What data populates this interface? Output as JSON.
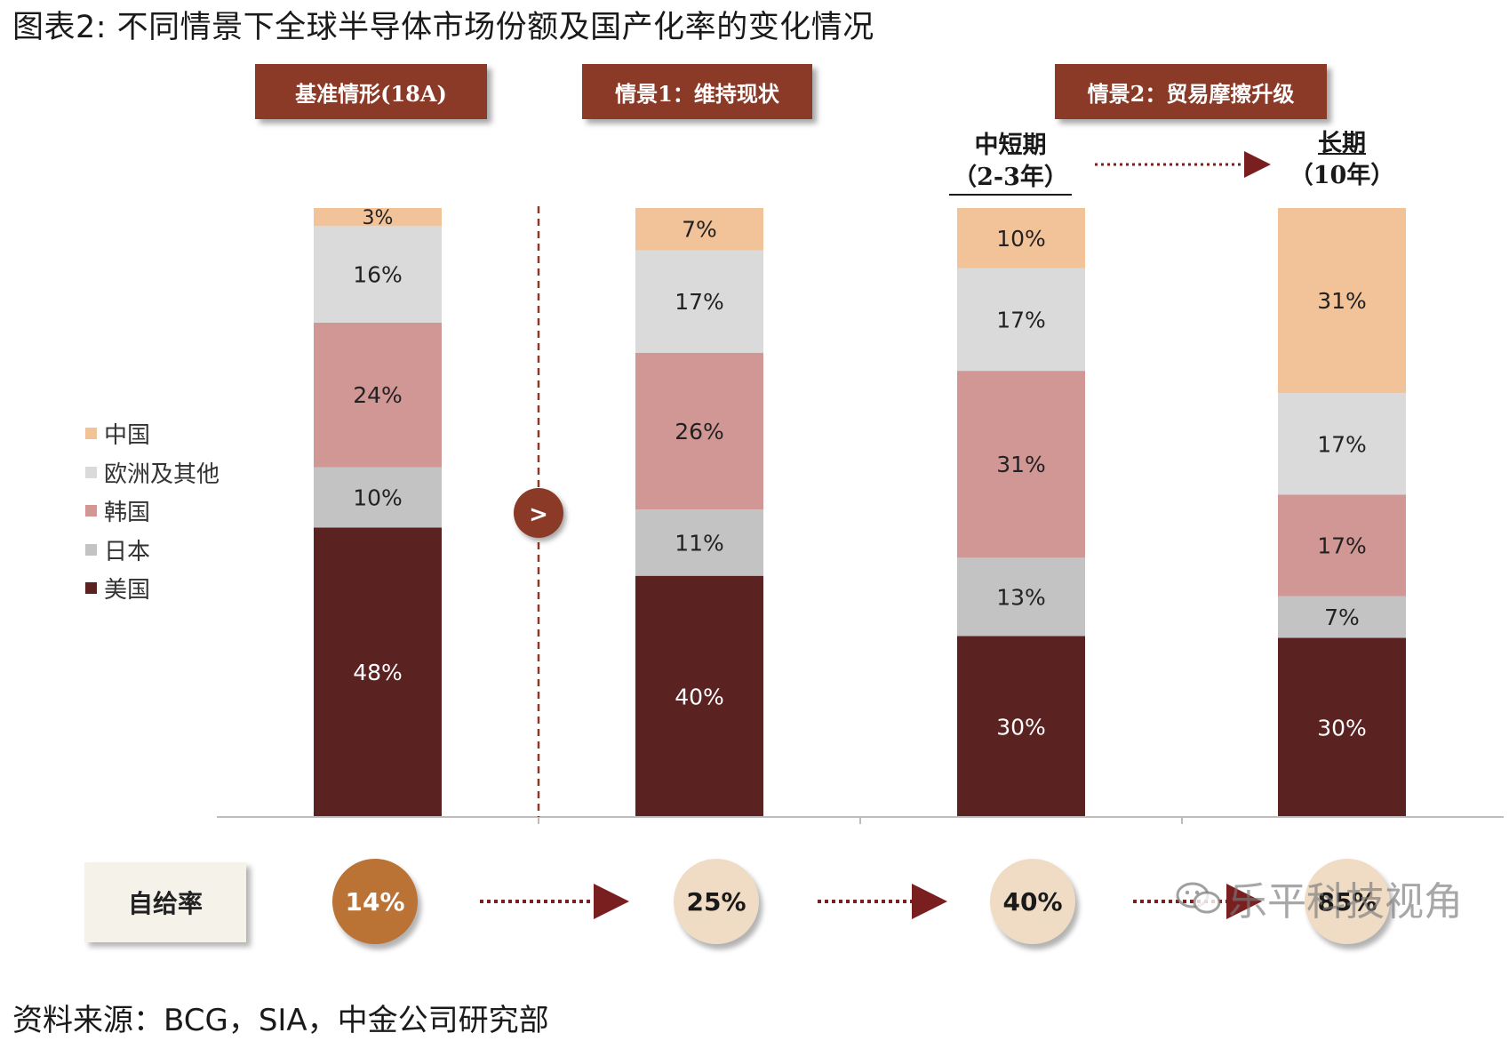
{
  "title": "图表2: 不同情景下全球半导体市场份额及国产化率的变化情况",
  "headers": {
    "base": "基准情形(18A)",
    "scenario1": "情景1：维持现状",
    "scenario2": "情景2：贸易摩擦升级"
  },
  "subheaders": {
    "mid_term_line1": "中短期",
    "mid_term_line2": "（2-3年）",
    "long_term_line1": "长期",
    "long_term_line2": "（10年）"
  },
  "arrow_button_label": ">",
  "legend": [
    {
      "label": "中国",
      "color": "#f2c298"
    },
    {
      "label": "欧洲及其他",
      "color": "#dadada"
    },
    {
      "label": "韩国",
      "color": "#d09794"
    },
    {
      "label": "日本",
      "color": "#c3c3c3"
    },
    {
      "label": "美国",
      "color": "#5a2220"
    }
  ],
  "self_sufficiency": {
    "label": "自给率",
    "values": [
      "14%",
      "25%",
      "40%",
      "85%"
    ]
  },
  "source": "资料来源：BCG，SIA，中金公司研究部",
  "watermark": "乐平科技视角",
  "chart_data": {
    "type": "bar",
    "stacked": true,
    "unit": "%",
    "categories": [
      "基准情形(18A)",
      "情景1：维持现状",
      "情景2：中短期（2-3年）",
      "情景2：长期（10年）"
    ],
    "series": [
      {
        "name": "美国",
        "values": [
          48,
          40,
          30,
          30
        ],
        "color": "#5a2220"
      },
      {
        "name": "日本",
        "values": [
          10,
          11,
          13,
          7
        ],
        "color": "#c3c3c3"
      },
      {
        "name": "韩国",
        "values": [
          24,
          26,
          31,
          17
        ],
        "color": "#d09794"
      },
      {
        "name": "欧洲及其他",
        "values": [
          16,
          17,
          17,
          17
        ],
        "color": "#dadada"
      },
      {
        "name": "中国",
        "values": [
          3,
          7,
          10,
          31
        ],
        "color": "#f2c298"
      }
    ],
    "self_sufficiency_rate": [
      14,
      25,
      40,
      85
    ],
    "legend_position": "left",
    "grid": false
  }
}
